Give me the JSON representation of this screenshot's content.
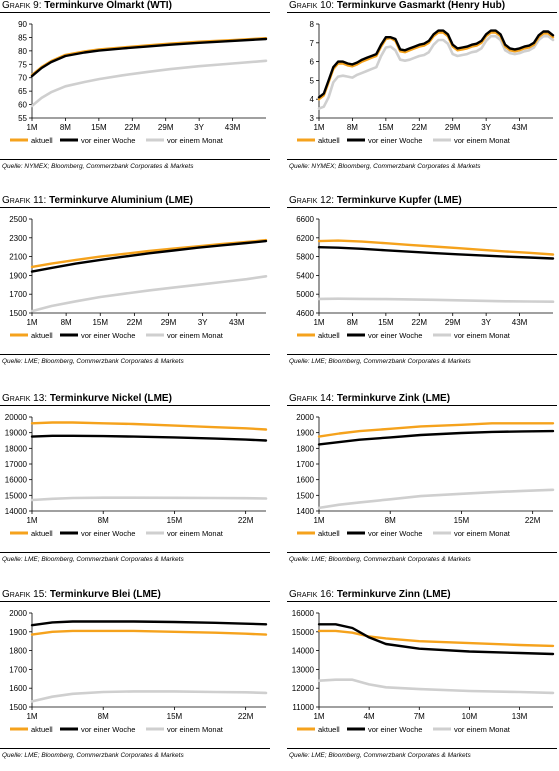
{
  "legend_labels": {
    "current": "aktuell",
    "week": "vor einer Woche",
    "month": "vor einem Monat"
  },
  "colors": {
    "current": "#f5a21c",
    "week": "#000000",
    "month": "#cfcfcf"
  },
  "charts": [
    {
      "title_prefix": "Grafik 9:",
      "title_text": "Terminkurve Ölmarkt (WTI)",
      "source": "Quelle: NYMEX; Bloomberg, Commerzbank Corporates & Markets",
      "chart_data": {
        "type": "line",
        "x": [
          1,
          3,
          5,
          8,
          12,
          15,
          20,
          25,
          30,
          36,
          43,
          50
        ],
        "xticks": [
          1,
          8,
          15,
          22,
          29,
          36,
          43
        ],
        "xtick_labels": [
          "1M",
          "8M",
          "15M",
          "22M",
          "29M",
          "3Y",
          "43M"
        ],
        "xlim": [
          1,
          50
        ],
        "ylim": [
          55,
          90
        ],
        "yticks": [
          55,
          60,
          65,
          70,
          75,
          80,
          85,
          90
        ],
        "series": [
          {
            "name": "aktuell",
            "values": [
              71,
              74,
              76.2,
              78.5,
              79.8,
              80.5,
              81.3,
              82,
              82.7,
              83.4,
              84,
              84.7
            ]
          },
          {
            "name": "vor einer Woche",
            "values": [
              70.6,
              73.6,
              75.8,
              78.1,
              79.4,
              80.1,
              80.9,
              81.6,
              82.3,
              83,
              83.7,
              84.4
            ]
          },
          {
            "name": "vor einem Monat",
            "values": [
              59.5,
              62.5,
              64.6,
              66.8,
              68.4,
              69.5,
              70.9,
              72.1,
              73.2,
              74.3,
              75.3,
              76.3
            ]
          }
        ]
      }
    },
    {
      "title_prefix": "Grafik 10:",
      "title_text": "Terminkurve Gasmarkt (Henry Hub)",
      "source": "Quelle: NYMEX; Bloomberg, Commerzbank Corporates & Markets",
      "chart_data": {
        "type": "line",
        "x": [
          1,
          2,
          3,
          4,
          5,
          6,
          7,
          8,
          9,
          10,
          11,
          12,
          13,
          14,
          15,
          16,
          17,
          18,
          19,
          20,
          21,
          22,
          23,
          24,
          25,
          26,
          27,
          28,
          29,
          30,
          31,
          32,
          33,
          34,
          35,
          36,
          37,
          38,
          39,
          40,
          41,
          42,
          43,
          44,
          45,
          46,
          47,
          48,
          49,
          50
        ],
        "xticks": [
          1,
          8,
          15,
          22,
          29,
          36,
          43
        ],
        "xtick_labels": [
          "1M",
          "8M",
          "15M",
          "22M",
          "29M",
          "3Y",
          "43M"
        ],
        "xlim": [
          1,
          50
        ],
        "ylim": [
          3,
          8
        ],
        "yticks": [
          3,
          4,
          5,
          6,
          7,
          8
        ],
        "series": [
          {
            "name": "aktuell",
            "values": [
              4,
              4.2,
              4.9,
              5.6,
              5.9,
              5.9,
              5.8,
              5.75,
              5.85,
              6,
              6.1,
              6.2,
              6.3,
              6.8,
              7.2,
              7.25,
              7.1,
              6.55,
              6.5,
              6.6,
              6.7,
              6.8,
              6.85,
              7,
              7.35,
              7.55,
              7.55,
              7.35,
              6.8,
              6.6,
              6.65,
              6.7,
              6.8,
              6.85,
              7,
              7.35,
              7.55,
              7.55,
              7.35,
              6.8,
              6.6,
              6.55,
              6.6,
              6.7,
              6.75,
              6.9,
              7.3,
              7.5,
              7.5,
              7.3
            ]
          },
          {
            "name": "vor einer Woche",
            "values": [
              4.1,
              4.3,
              5,
              5.7,
              6,
              6,
              5.9,
              5.85,
              5.95,
              6.1,
              6.2,
              6.3,
              6.4,
              6.9,
              7.3,
              7.3,
              7.2,
              6.65,
              6.6,
              6.7,
              6.8,
              6.9,
              6.95,
              7.1,
              7.45,
              7.65,
              7.65,
              7.45,
              6.9,
              6.7,
              6.75,
              6.8,
              6.9,
              6.95,
              7.1,
              7.45,
              7.65,
              7.65,
              7.45,
              6.9,
              6.7,
              6.65,
              6.7,
              6.8,
              6.85,
              7,
              7.4,
              7.6,
              7.6,
              7.4
            ]
          },
          {
            "name": "vor einem Monat",
            "values": [
              3.5,
              3.6,
              4.1,
              4.9,
              5.2,
              5.25,
              5.2,
              5.15,
              5.3,
              5.4,
              5.5,
              5.6,
              5.7,
              6.3,
              6.75,
              6.8,
              6.6,
              6.1,
              6.05,
              6.1,
              6.2,
              6.3,
              6.35,
              6.5,
              6.9,
              7.15,
              7.15,
              6.95,
              6.4,
              6.3,
              6.35,
              6.4,
              6.5,
              6.55,
              6.7,
              7.1,
              7.35,
              7.35,
              7.15,
              6.6,
              6.45,
              6.4,
              6.45,
              6.55,
              6.6,
              6.75,
              7.15,
              7.35,
              7.35,
              7.15
            ]
          }
        ]
      }
    },
    {
      "title_prefix": "Grafik 11:",
      "title_text": "Terminkurve Aluminium (LME)",
      "source": "Quelle: LME; Bloomberg, Commerzbank Corporates & Markets",
      "chart_data": {
        "type": "line",
        "x": [
          1,
          5,
          10,
          15,
          20,
          25,
          30,
          35,
          40,
          45,
          49
        ],
        "xticks": [
          1,
          8,
          15,
          22,
          29,
          36,
          43
        ],
        "xtick_labels": [
          "1M",
          "8M",
          "15M",
          "22M",
          "29M",
          "3Y",
          "43M"
        ],
        "xlim": [
          1,
          49
        ],
        "ylim": [
          1500,
          2500
        ],
        "yticks": [
          1500,
          1700,
          1900,
          2100,
          2300,
          2500
        ],
        "series": [
          {
            "name": "aktuell",
            "values": [
              1990,
              2025,
              2065,
              2100,
              2130,
              2160,
              2185,
              2210,
              2235,
              2255,
              2275
            ]
          },
          {
            "name": "vor einer Woche",
            "values": [
              1940,
              1980,
              2025,
              2065,
              2100,
              2135,
              2165,
              2195,
              2220,
              2245,
              2265
            ]
          },
          {
            "name": "vor einem Monat",
            "values": [
              1520,
              1575,
              1625,
              1670,
              1705,
              1740,
              1770,
              1800,
              1830,
              1860,
              1890
            ]
          }
        ]
      }
    },
    {
      "title_prefix": "Grafik 12:",
      "title_text": "Terminkurve Kupfer (LME)",
      "source": "Quelle: LME; Bloomberg, Commerzbank Corporates & Markets",
      "chart_data": {
        "type": "line",
        "x": [
          1,
          5,
          10,
          15,
          20,
          25,
          30,
          35,
          40,
          45,
          50
        ],
        "xticks": [
          1,
          8,
          15,
          22,
          29,
          36,
          43
        ],
        "xtick_labels": [
          "1M",
          "8M",
          "15M",
          "22M",
          "29M",
          "3Y",
          "43M"
        ],
        "xlim": [
          1,
          50
        ],
        "ylim": [
          4600,
          6600
        ],
        "yticks": [
          4600,
          5000,
          5400,
          5800,
          6200,
          6600
        ],
        "series": [
          {
            "name": "aktuell",
            "values": [
              6130,
              6140,
              6120,
              6085,
              6050,
              6015,
              5980,
              5945,
              5910,
              5880,
              5845
            ]
          },
          {
            "name": "vor einer Woche",
            "values": [
              6000,
              5990,
              5965,
              5935,
              5905,
              5875,
              5850,
              5825,
              5800,
              5780,
              5760
            ]
          },
          {
            "name": "vor einem Monat",
            "values": [
              4900,
              4905,
              4900,
              4895,
              4890,
              4880,
              4870,
              4860,
              4850,
              4845,
              4840
            ]
          }
        ]
      }
    },
    {
      "title_prefix": "Grafik 13:",
      "title_text": "Terminkurve Nickel (LME)",
      "source": "Quelle: LME; Bloomberg, Commerzbank Corporates & Markets",
      "chart_data": {
        "type": "line",
        "x": [
          1,
          3,
          5,
          8,
          11,
          15,
          19,
          22,
          24
        ],
        "xticks": [
          1,
          8,
          15,
          22
        ],
        "xtick_labels": [
          "1M",
          "8M",
          "15M",
          "22M"
        ],
        "xlim": [
          1,
          24
        ],
        "ylim": [
          14000,
          20000
        ],
        "yticks": [
          14000,
          15000,
          16000,
          17000,
          18000,
          19000,
          20000
        ],
        "series": [
          {
            "name": "aktuell",
            "values": [
              19600,
              19650,
              19650,
              19600,
              19550,
              19450,
              19350,
              19280,
              19200
            ]
          },
          {
            "name": "vor einer Woche",
            "values": [
              18750,
              18800,
              18800,
              18780,
              18750,
              18700,
              18620,
              18560,
              18500
            ]
          },
          {
            "name": "vor einem Monat",
            "values": [
              14700,
              14780,
              14830,
              14850,
              14850,
              14840,
              14830,
              14820,
              14800
            ]
          }
        ]
      }
    },
    {
      "title_prefix": "Grafik 14:",
      "title_text": "Terminkurve Zink (LME)",
      "source": "Quelle: LME; Bloomberg, Commerzbank Corporates & Markets",
      "chart_data": {
        "type": "line",
        "x": [
          1,
          3,
          5,
          8,
          11,
          15,
          18,
          21,
          24
        ],
        "xticks": [
          1,
          8,
          15,
          22
        ],
        "xtick_labels": [
          "1M",
          "8M",
          "15M",
          "22M"
        ],
        "xlim": [
          1,
          24
        ],
        "ylim": [
          1400,
          2000
        ],
        "yticks": [
          1400,
          1500,
          1600,
          1700,
          1800,
          1900,
          2000
        ],
        "series": [
          {
            "name": "aktuell",
            "values": [
              1875,
              1895,
              1910,
              1925,
              1940,
              1950,
              1960,
              1960,
              1960
            ]
          },
          {
            "name": "vor einer Woche",
            "values": [
              1825,
              1840,
              1855,
              1870,
              1885,
              1898,
              1905,
              1908,
              1910
            ]
          },
          {
            "name": "vor einem Monat",
            "values": [
              1420,
              1440,
              1455,
              1475,
              1495,
              1510,
              1520,
              1528,
              1535
            ]
          }
        ]
      }
    },
    {
      "title_prefix": "Grafik 15:",
      "title_text": "Terminkurve Blei (LME)",
      "source": "Quelle: LME; Bloomberg, Commerzbank Corporates & Markets",
      "chart_data": {
        "type": "line",
        "x": [
          1,
          3,
          5,
          8,
          11,
          15,
          19,
          22,
          24
        ],
        "xticks": [
          1,
          8,
          15,
          22
        ],
        "xtick_labels": [
          "1M",
          "8M",
          "15M",
          "22M"
        ],
        "xlim": [
          1,
          24
        ],
        "ylim": [
          1500,
          2000
        ],
        "yticks": [
          1500,
          1600,
          1700,
          1800,
          1900,
          2000
        ],
        "series": [
          {
            "name": "aktuell",
            "values": [
              1885,
              1900,
              1905,
              1905,
              1905,
              1900,
              1895,
              1890,
              1885
            ]
          },
          {
            "name": "vor einer Woche",
            "values": [
              1935,
              1950,
              1955,
              1955,
              1955,
              1952,
              1948,
              1943,
              1940
            ]
          },
          {
            "name": "vor einem Monat",
            "values": [
              1530,
              1555,
              1570,
              1580,
              1583,
              1583,
              1580,
              1578,
              1575
            ]
          }
        ]
      }
    },
    {
      "title_prefix": "Grafik 16:",
      "title_text": "Terminkurve Zinn (LME)",
      "source": "Quelle: LME; Bloomberg, Commerzbank Corporates & Markets",
      "chart_data": {
        "type": "line",
        "x": [
          1,
          2,
          3,
          4,
          5,
          7,
          10,
          13,
          15
        ],
        "xticks": [
          1,
          4,
          7,
          10,
          13
        ],
        "xtick_labels": [
          "1M",
          "4M",
          "7M",
          "10M",
          "13M"
        ],
        "xlim": [
          1,
          15
        ],
        "ylim": [
          11000,
          16000
        ],
        "yticks": [
          11000,
          12000,
          13000,
          14000,
          15000,
          16000
        ],
        "series": [
          {
            "name": "aktuell",
            "values": [
              15050,
              15050,
              14950,
              14750,
              14650,
              14500,
              14400,
              14300,
              14250
            ]
          },
          {
            "name": "vor einer Woche",
            "values": [
              15400,
              15400,
              15200,
              14700,
              14350,
              14100,
              13950,
              13870,
              13820
            ]
          },
          {
            "name": "vor einem Monat",
            "values": [
              12400,
              12450,
              12450,
              12200,
              12050,
              11950,
              11850,
              11800,
              11750
            ]
          }
        ]
      }
    }
  ]
}
